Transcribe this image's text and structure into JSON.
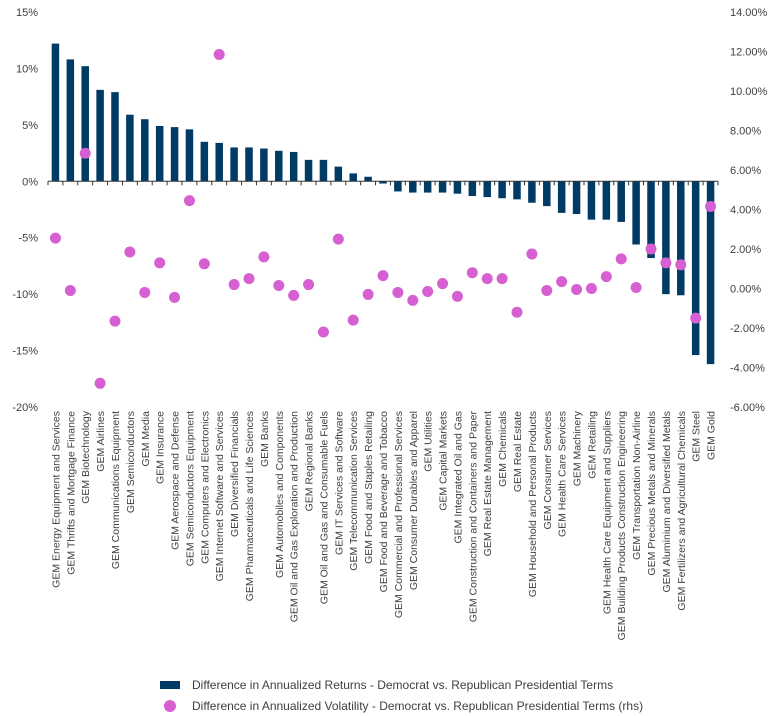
{
  "colors": {
    "bar": "#003b66",
    "dot": "#d65fd1",
    "axis": "#333333"
  },
  "chart_data": {
    "type": "bar",
    "categories": [
      "GEM Energy Equipment and Services",
      "GEM Thrifts and Mortgage Finance",
      "GEM Biotechnology",
      "GEM Airlines",
      "GEM Communications Equipment",
      "GEM Semiconductors",
      "GEM Media",
      "GEM Insurance",
      "GEM Aerospace and Defense",
      "GEM Semiconductors Equipment",
      "GEM Computers and Electronics",
      "GEM Internet Software and Services",
      "GEM Diversified Financials",
      "GEM Pharmaceuticals and Life Sciences",
      "GEM Banks",
      "GEM Automobiles and Components",
      "GEM Oil and Gas Exploration and Production",
      "GEM Regional Banks",
      "GEM Oil and Gas and Consumable Fuels",
      "GEM IT Services and Software",
      "GEM Telecommunication Services",
      "GEM Food and Staples Retailing",
      "GEM Food and Beverage and Tobacco",
      "GEM Commercial and Professional Services",
      "GEM Consumer Durables and Apparel",
      "GEM Utilities",
      "GEM Capital Markets",
      "GEM Integrated Oil and Gas",
      "GEM Construction and Containers and Paper",
      "GEM Real Estate Management",
      "GEM Chemicals",
      "GEM Real Estate",
      "GEM Household and Personal Products",
      "GEM Consumer Services",
      "GEM Health Care Services",
      "GEM Machinery",
      "GEM Retailing",
      "GEM Health Care Equipment and Suppliers",
      "GEM Building Products Construction Engineering",
      "GEM Transportation Non-Airline",
      "GEM Precious Metals and Minerals",
      "GEM Aluminium and Diversified Metals",
      "GEM Fertilizers and Agricultural Chemicals",
      "GEM Steel",
      "GEM Gold"
    ],
    "series": [
      {
        "name": "Difference in Annualized Returns - Democrat vs. Republican Presidential Terms",
        "axis": "left",
        "values": [
          12.2,
          10.8,
          10.2,
          8.1,
          7.9,
          5.9,
          5.5,
          4.9,
          4.8,
          4.6,
          3.5,
          3.4,
          3.0,
          3.0,
          2.9,
          2.7,
          2.6,
          1.9,
          1.9,
          1.3,
          0.7,
          0.4,
          -0.2,
          -0.9,
          -1.0,
          -1.0,
          -1.0,
          -1.1,
          -1.3,
          -1.4,
          -1.5,
          -1.6,
          -1.9,
          -2.2,
          -2.8,
          -2.9,
          -3.4,
          -3.4,
          -3.6,
          -5.6,
          -6.8,
          -10.0,
          -10.1,
          -15.4,
          -16.2
        ]
      },
      {
        "name": "Difference in Annualized Volatility - Democrat vs. Republican Presidential Terms (rhs)",
        "axis": "right",
        "type": "scatter",
        "values": [
          2.55,
          -0.1,
          6.85,
          -4.8,
          -1.65,
          1.85,
          -0.2,
          1.3,
          -0.45,
          4.45,
          1.25,
          11.85,
          0.2,
          0.5,
          1.6,
          0.15,
          -0.35,
          0.2,
          -2.2,
          2.5,
          -1.6,
          -0.3,
          0.65,
          -0.2,
          -0.6,
          -0.15,
          0.25,
          -0.4,
          0.8,
          0.5,
          0.5,
          -1.2,
          1.75,
          -0.1,
          0.35,
          -0.05,
          0.0,
          0.6,
          1.5,
          0.05,
          2.0,
          1.3,
          1.2,
          -1.5,
          4.15
        ]
      }
    ],
    "y_left": {
      "min": -20,
      "max": 15,
      "ticks": [
        "15%",
        "10%",
        "5%",
        "0%",
        "-5%",
        "-10%",
        "-15%",
        "-20%"
      ],
      "tick_values": [
        15,
        10,
        5,
        0,
        -5,
        -10,
        -15,
        -20
      ]
    },
    "y_right": {
      "min": -6,
      "max": 14,
      "ticks": [
        "14.00%",
        "12.00%",
        "10.00%",
        "8.00%",
        "6.00%",
        "4.00%",
        "2.00%",
        "0.00%",
        "-2.00%",
        "-4.00%",
        "-6.00%"
      ],
      "tick_values": [
        14,
        12,
        10,
        8,
        6,
        4,
        2,
        0,
        -2,
        -4,
        -6
      ]
    },
    "grid": false,
    "legend_position": "bottom"
  }
}
